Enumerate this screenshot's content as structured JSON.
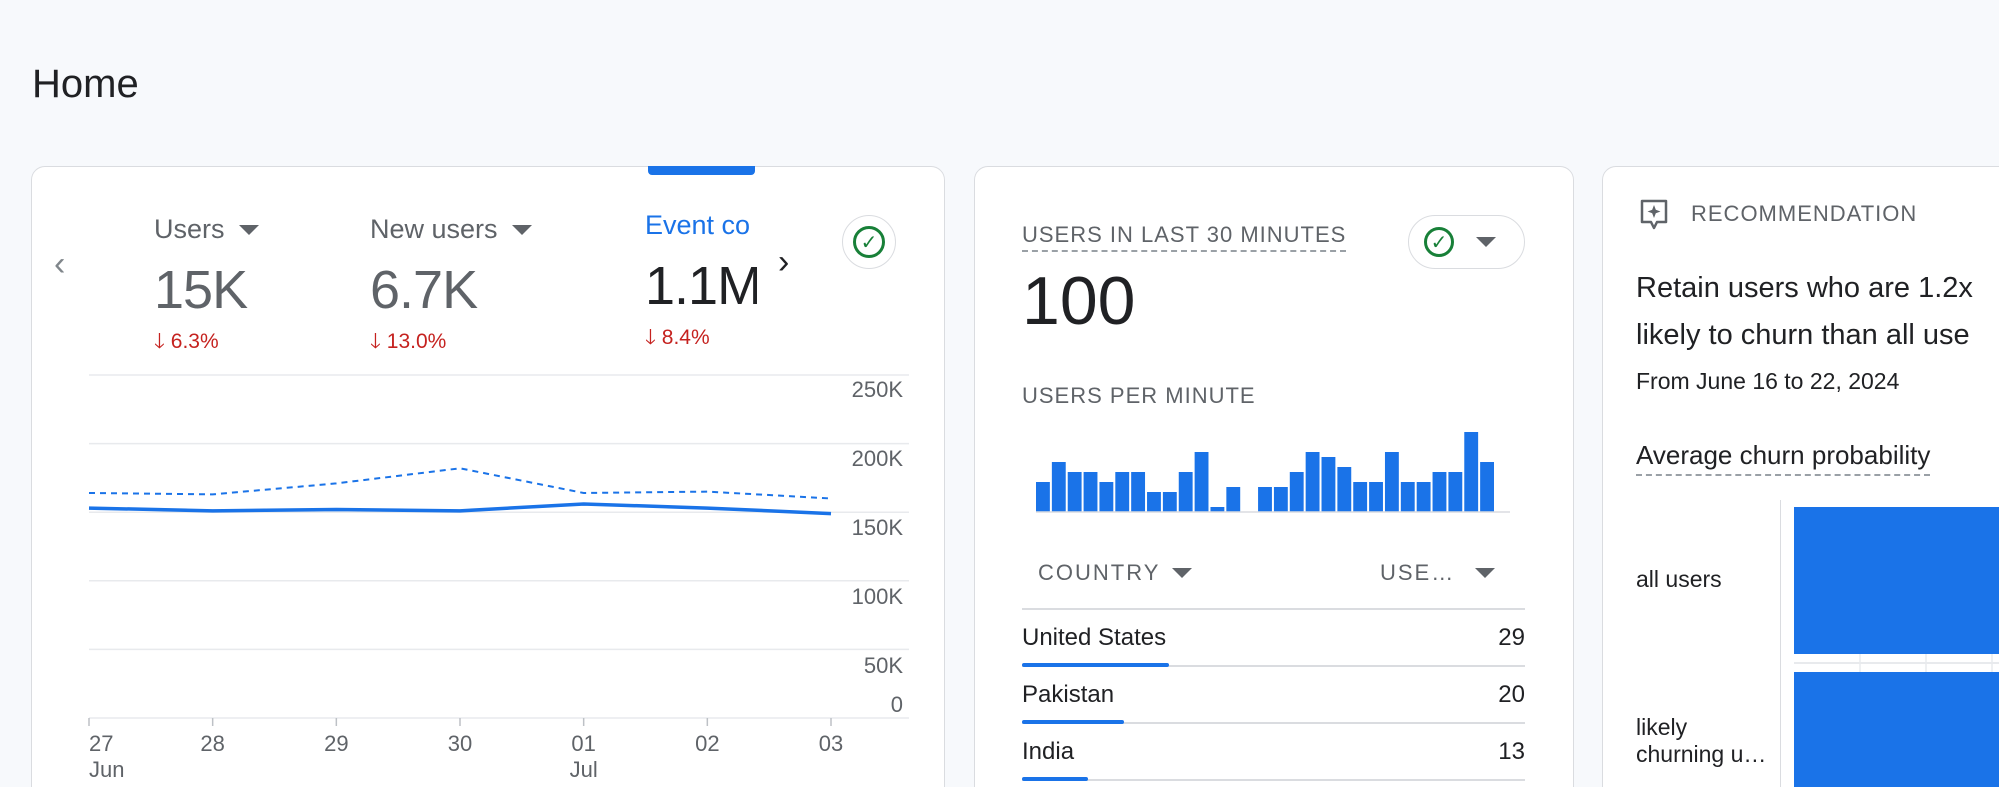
{
  "page": {
    "title": "Home"
  },
  "overview": {
    "metrics": [
      {
        "label": "Users",
        "value": "15K",
        "change": "6.3%",
        "active": false
      },
      {
        "label": "New users",
        "value": "6.7K",
        "change": "13.0%",
        "active": false
      },
      {
        "label": "Event co",
        "value": "1.1M",
        "change": "8.4%",
        "active": true
      }
    ],
    "change_arrow": "🡓",
    "prev_label": "‹",
    "next_label": "›",
    "check_glyph": "✓"
  },
  "chart_data": {
    "type": "line",
    "x": [
      "27 Jun",
      "28 Jun",
      "29 Jun",
      "30 Jun",
      "01 Jul",
      "02 Jul",
      "03 Jul"
    ],
    "x_tick_labels": [
      [
        "27",
        "Jun"
      ],
      [
        "28",
        ""
      ],
      [
        "29",
        ""
      ],
      [
        "30",
        ""
      ],
      [
        "01",
        "Jul"
      ],
      [
        "02",
        ""
      ],
      [
        "03",
        ""
      ]
    ],
    "y_tick_labels": [
      "250K",
      "200K",
      "150K",
      "100K",
      "50K",
      "0"
    ],
    "ylim": [
      0,
      250000
    ],
    "series": [
      {
        "values": [
          153000,
          151000,
          152000,
          151000,
          156000,
          153000,
          149000
        ],
        "style": "solid",
        "color": "#1a73e8"
      },
      {
        "values": [
          164000,
          163000,
          171000,
          182000,
          164000,
          165000,
          160000
        ],
        "style": "dashed",
        "color": "#1a73e8"
      }
    ],
    "grid": true
  },
  "realtime": {
    "title": "USERS IN LAST 30 MINUTES",
    "value": "100",
    "per_minute_title": "USERS PER MINUTE",
    "per_minute_values": [
      3,
      5,
      4,
      4,
      3,
      4,
      4,
      2,
      2,
      4,
      6,
      0.5,
      2.5,
      0,
      2.5,
      2.5,
      4,
      6,
      5.5,
      4.5,
      3,
      3,
      6,
      3,
      3,
      4,
      4,
      8,
      5
    ],
    "bar_color": "#1a73e8",
    "table": {
      "col_country": "COUNTRY",
      "col_users": "USE…",
      "rows": [
        {
          "country": "United States",
          "users": "29",
          "share": 0.29
        },
        {
          "country": "Pakistan",
          "users": "20",
          "share": 0.2
        },
        {
          "country": "India",
          "users": "13",
          "share": 0.13
        }
      ]
    }
  },
  "recommendation": {
    "label": "RECOMMENDATION",
    "title_line1": "Retain users who are 1.2x",
    "title_line2": "likely to churn than all use",
    "subtitle": "From June 16 to 22, 2024",
    "metric_label": "Average churn probability",
    "categories": [
      {
        "line1": "all users",
        "line2": ""
      },
      {
        "line1": "likely",
        "line2": "churning u…"
      }
    ]
  }
}
